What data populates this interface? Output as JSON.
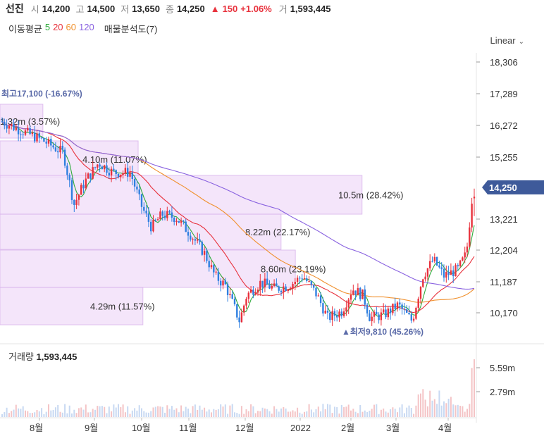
{
  "header": {
    "name": "선진",
    "open_label": "시",
    "open": "14,200",
    "high_label": "고",
    "high": "14,500",
    "low_label": "저",
    "low": "13,650",
    "close_label": "종",
    "close": "14,250",
    "change_arrow": "▲",
    "change": "150",
    "change_pct": "+1.06%",
    "volume_label": "거",
    "volume": "1,593,445"
  },
  "indicators": {
    "ma_label": "이동평균",
    "ma_periods": [
      {
        "label": "5",
        "color": "#2eab3c"
      },
      {
        "label": "20",
        "color": "#e8313c"
      },
      {
        "label": "60",
        "color": "#f0902d"
      },
      {
        "label": "120",
        "color": "#8a63e0"
      }
    ],
    "profile_label": "매물분석도(7)"
  },
  "scale_label": "Linear",
  "colors": {
    "up": "#e8313c",
    "down": "#2f7fe0",
    "price_tag": "#3e5a9a",
    "profile": "#f3e1fa",
    "profile_border": "#d9b3ec"
  },
  "chart_data": {
    "type": "candlestick",
    "y_ticks": [
      "18,306",
      "17,289",
      "16,272",
      "15,255",
      "14,250",
      "13,221",
      "12,204",
      "11,187",
      "10,170"
    ],
    "y_tick_values": [
      18306,
      17289,
      16272,
      15255,
      13221,
      12204,
      11187,
      10170
    ],
    "ylim": [
      9700,
      18700
    ],
    "current_price": 14250,
    "current_price_label": "14,250",
    "x_ticks": [
      "8월",
      "9월",
      "10월",
      "11월",
      "12월",
      "2022",
      "2월",
      "3월",
      "4월"
    ],
    "high_marker": {
      "label": "최고",
      "price": "17,100",
      "pct": "(-16.67%)"
    },
    "low_marker": {
      "label": "최저",
      "price": "9,810",
      "pct": "(45.26%)"
    },
    "volume_profile": [
      {
        "label": "1.32m (3.57%)",
        "from": 16272,
        "to": 17100,
        "extent": 0.09
      },
      {
        "label": "4.10m (11.07%)",
        "from": 14950,
        "to": 15950,
        "extent": 0.29
      },
      {
        "label": "10.5m (28.42%)",
        "from": 13330,
        "to": 14800,
        "extent": 0.76
      },
      {
        "label": "8.22m (22.17%)",
        "from": 12204,
        "to": 13330,
        "extent": 0.59
      },
      {
        "label": "8.60m (23.19%)",
        "from": 11000,
        "to": 12204,
        "extent": 0.62
      },
      {
        "label": "4.29m (11.57%)",
        "from": 9810,
        "to": 11187,
        "extent": 0.3
      }
    ],
    "volume_title": "거래량",
    "volume_value": "1,593,445",
    "volume_ticks": [
      "5.59m",
      "2.79m"
    ]
  }
}
